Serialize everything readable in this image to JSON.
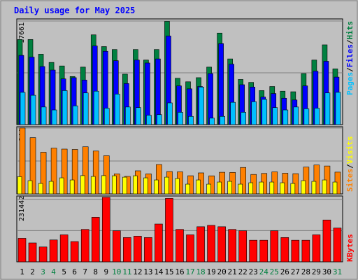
{
  "colors": {
    "background": "#c0c0c0",
    "panel": "#c0c0c0",
    "title": "#0000ff",
    "hits": "#008040",
    "files": "#0000ff",
    "pages": "#00c0ff",
    "visits": "#ffff00",
    "sites": "#ff8000",
    "kbytes": "#ff0000",
    "weekday_label": "#000000",
    "weekend_label": "#008040"
  },
  "chart_data": [
    {
      "type": "bar",
      "title": "Daily usage for May 2025",
      "panel": "hits_files_pages",
      "ymax": 17661,
      "ytick_label": "17661",
      "legend": [
        "Pages",
        "/",
        "Files",
        "/",
        "Hits"
      ],
      "categories": [
        "1",
        "2",
        "3",
        "4",
        "5",
        "6",
        "7",
        "8",
        "9",
        "10",
        "11",
        "12",
        "13",
        "14",
        "15",
        "16",
        "17",
        "18",
        "19",
        "20",
        "21",
        "22",
        "23",
        "24",
        "25",
        "26",
        "27",
        "28",
        "29",
        "30",
        "31"
      ],
      "series": [
        {
          "name": "Hits",
          "values": [
            14500,
            14500,
            12000,
            10600,
            10000,
            8200,
            9800,
            15300,
            13300,
            12800,
            8600,
            12800,
            11000,
            12800,
            17600,
            7900,
            7300,
            8000,
            9800,
            15600,
            11200,
            7700,
            7200,
            5800,
            6500,
            5700,
            5600,
            8700,
            11000,
            13600,
            9500
          ]
        },
        {
          "name": "Files",
          "values": [
            11800,
            11500,
            9900,
            9300,
            7800,
            8000,
            7600,
            13400,
            12500,
            10900,
            7000,
            11000,
            10500,
            11200,
            15100,
            6600,
            6100,
            6500,
            8700,
            13800,
            10300,
            6800,
            6400,
            4700,
            5300,
            4500,
            4200,
            6600,
            9100,
            10800,
            8100
          ]
        },
        {
          "name": "Pages",
          "values": [
            5500,
            5000,
            3000,
            2500,
            5800,
            3200,
            5400,
            5700,
            2800,
            5200,
            3000,
            2900,
            1600,
            1700,
            3700,
            2100,
            1400,
            6400,
            1100,
            1400,
            3800,
            2100,
            3900,
            4300,
            2900,
            2500,
            3000,
            2700,
            2800,
            5400,
            5500
          ]
        }
      ]
    },
    {
      "type": "bar",
      "panel": "visits_sites",
      "ymax": 944,
      "ytick_label": "944",
      "legend": [
        "Sites",
        "/",
        "Visits"
      ],
      "categories": [
        "1",
        "2",
        "3",
        "4",
        "5",
        "6",
        "7",
        "8",
        "9",
        "10",
        "11",
        "12",
        "13",
        "14",
        "15",
        "16",
        "17",
        "18",
        "19",
        "20",
        "21",
        "22",
        "23",
        "24",
        "25",
        "26",
        "27",
        "28",
        "29",
        "30",
        "31"
      ],
      "series": [
        {
          "name": "Sites",
          "values": [
            944,
            806,
            597,
            656,
            642,
            637,
            675,
            614,
            547,
            287,
            251,
            331,
            287,
            421,
            321,
            316,
            260,
            301,
            259,
            310,
            308,
            379,
            279,
            293,
            316,
            296,
            290,
            384,
            414,
            400,
            312
          ]
        },
        {
          "name": "Visits",
          "values": [
            246,
            190,
            150,
            180,
            230,
            200,
            262,
            250,
            262,
            260,
            240,
            260,
            230,
            200,
            240,
            220,
            140,
            200,
            140,
            170,
            180,
            140,
            160,
            170,
            170,
            160,
            150,
            190,
            180,
            200,
            170
          ]
        }
      ]
    },
    {
      "type": "bar",
      "panel": "kbytes",
      "ymax": 231442,
      "ytick_label": "231442",
      "legend": [
        "KBytes"
      ],
      "categories": [
        "1",
        "2",
        "3",
        "4",
        "5",
        "6",
        "7",
        "8",
        "9",
        "10",
        "11",
        "12",
        "13",
        "14",
        "15",
        "16",
        "17",
        "18",
        "19",
        "20",
        "21",
        "22",
        "23",
        "24",
        "25",
        "26",
        "27",
        "28",
        "29",
        "30",
        "31"
      ],
      "series": [
        {
          "name": "KBytes",
          "values": [
            87000,
            70000,
            55000,
            81000,
            100000,
            75000,
            120000,
            165000,
            239000,
            115000,
            90000,
            95000,
            90000,
            140000,
            235000,
            120000,
            100000,
            130000,
            135000,
            130000,
            120000,
            115000,
            80000,
            80000,
            115000,
            90000,
            80000,
            80000,
            100000,
            155000,
            125000
          ]
        }
      ]
    }
  ]
}
